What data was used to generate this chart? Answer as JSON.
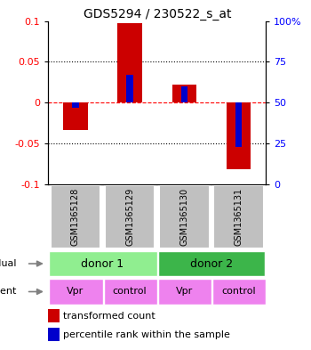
{
  "title": "GDS5294 / 230522_s_at",
  "samples": [
    "GSM1365128",
    "GSM1365129",
    "GSM1365130",
    "GSM1365131"
  ],
  "red_values": [
    -0.033,
    0.097,
    0.022,
    -0.082
  ],
  "blue_values_pct": [
    47,
    67,
    60,
    23
  ],
  "ylim": [
    -0.1,
    0.1
  ],
  "yticks_left": [
    -0.1,
    -0.05,
    0,
    0.05,
    0.1
  ],
  "ytick_labels_left": [
    "-0.1",
    "-0.05",
    "0",
    "0.05",
    "0.1"
  ],
  "ytick_labels_right": [
    "0",
    "25",
    "50",
    "75",
    "100%"
  ],
  "individual_labels": [
    "donor 1",
    "donor 2"
  ],
  "agent_labels": [
    "Vpr",
    "control",
    "Vpr",
    "control"
  ],
  "individual_color_1": "#90EE90",
  "individual_color_2": "#3CB54A",
  "agent_color": "#EE82EE",
  "sample_bg_color": "#C0C0C0",
  "bar_red": "#CC0000",
  "bar_blue": "#0000CC",
  "bar_width": 0.45,
  "blue_bar_width": 0.12,
  "legend_red": "transformed count",
  "legend_blue": "percentile rank within the sample"
}
